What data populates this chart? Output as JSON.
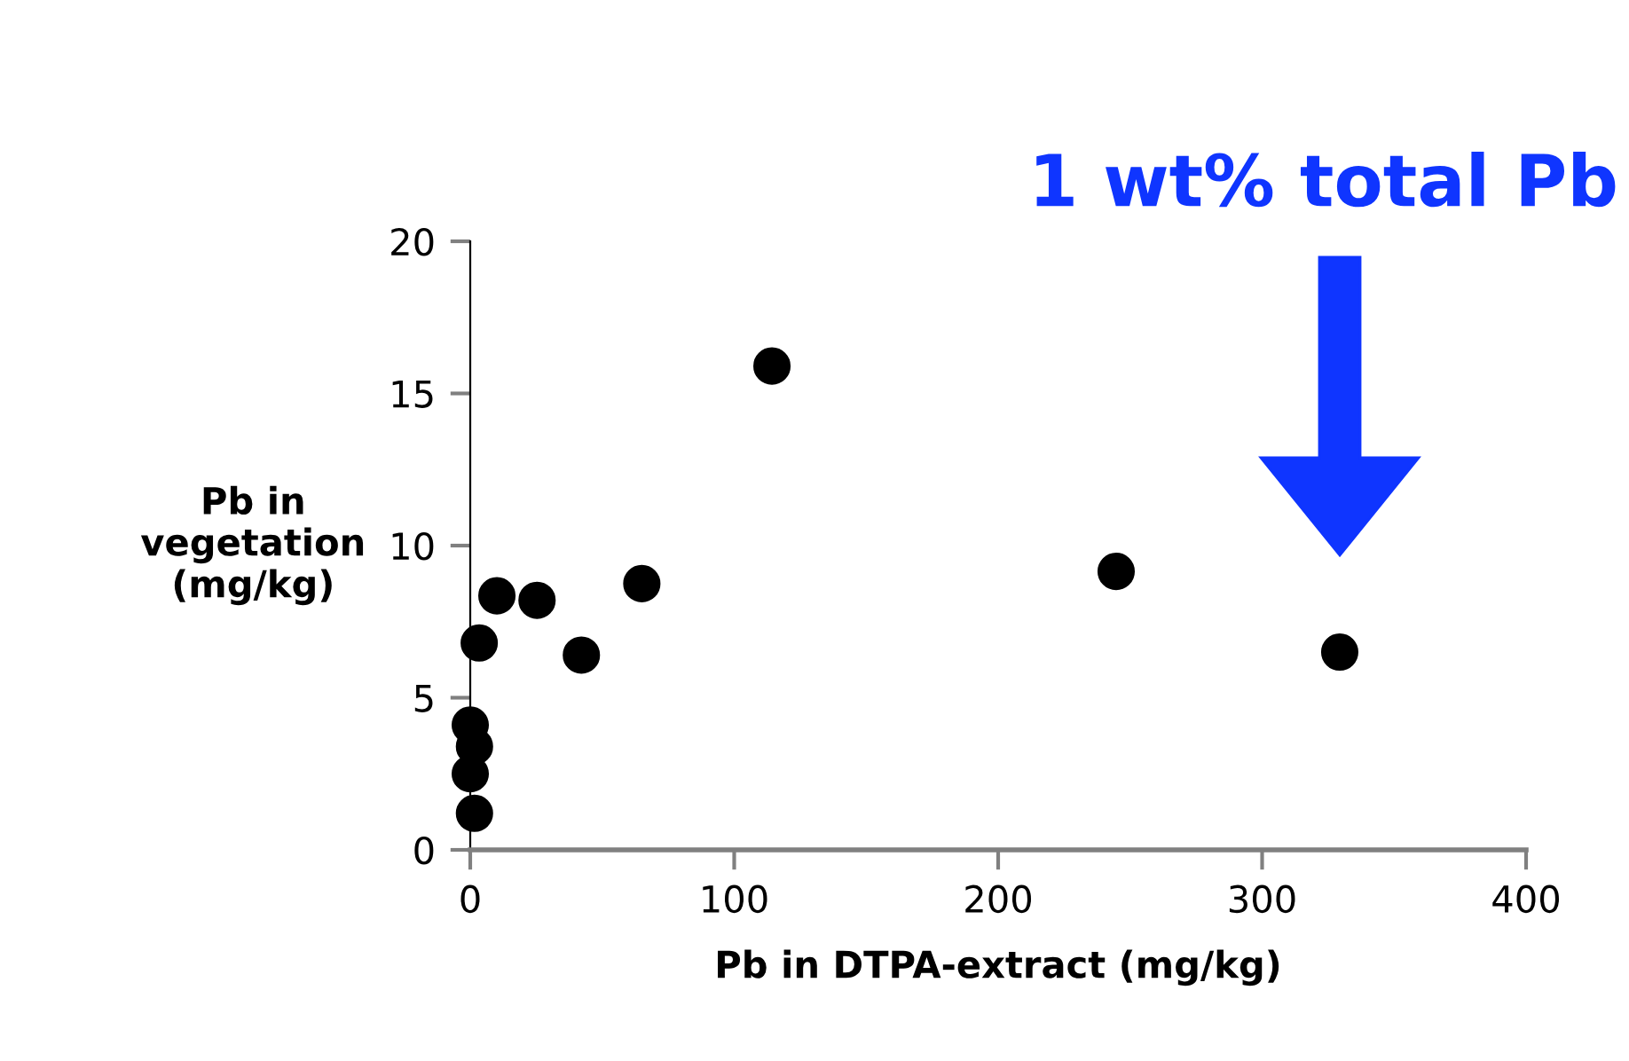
{
  "chart_data": {
    "type": "scatter",
    "xlabel": "Pb in DTPA-extract (mg/kg)",
    "ylabel": "Pb in\nvegetation\n(mg/kg)",
    "x": [
      0,
      1.6,
      0,
      1.6,
      3.4,
      10.1,
      25.3,
      42.1,
      65,
      114.3,
      244.7,
      329.4
    ],
    "values": [
      4.1,
      3.4,
      2.5,
      1.2,
      6.8,
      8.35,
      8.2,
      6.4,
      8.75,
      15.9,
      9.15,
      6.5
    ],
    "color": "#000000",
    "marker": "circle",
    "xlim": [
      0,
      400
    ],
    "xticks": [
      0,
      100,
      200,
      300,
      400
    ],
    "ylim": [
      0,
      20
    ],
    "yticks": [
      0,
      5,
      10,
      15,
      20
    ],
    "grid": false,
    "annotations": [
      "1 wt% total Pb"
    ]
  }
}
